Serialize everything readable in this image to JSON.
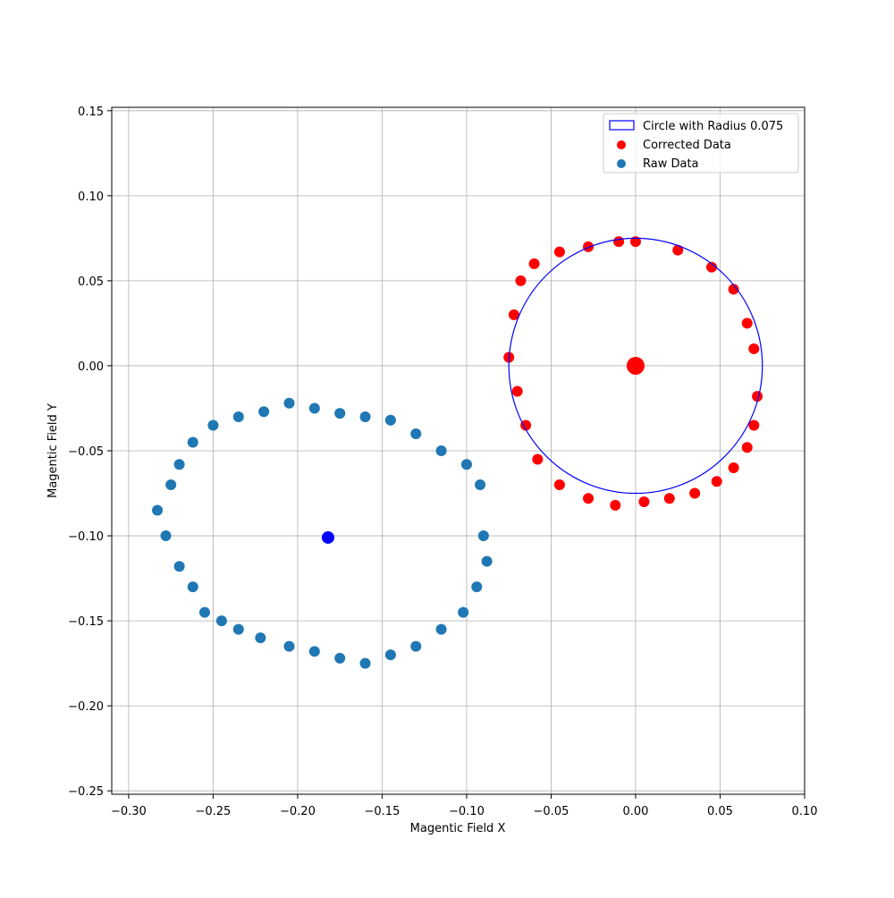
{
  "chart_data": {
    "type": "scatter",
    "title": "",
    "xlabel": "Magentic Field X",
    "ylabel": "Magentic Field Y",
    "xlim": [
      -0.31,
      0.1
    ],
    "ylim": [
      -0.252,
      0.152
    ],
    "xticks": [
      -0.3,
      -0.25,
      -0.2,
      -0.15,
      -0.1,
      -0.05,
      0.0,
      0.05,
      0.1
    ],
    "xtick_labels": [
      "−0.30",
      "−0.25",
      "−0.20",
      "−0.15",
      "−0.10",
      "−0.05",
      "0.00",
      "0.05",
      "0.10"
    ],
    "yticks": [
      -0.25,
      -0.2,
      -0.15,
      -0.1,
      -0.05,
      0.0,
      0.05,
      0.1,
      0.15
    ],
    "ytick_labels": [
      "−0.25",
      "−0.20",
      "−0.15",
      "−0.10",
      "−0.05",
      "0.00",
      "0.05",
      "0.10",
      "0.15"
    ],
    "grid": true,
    "legend_position": "top-right",
    "legend": [
      {
        "label": "Circle with Radius 0.075",
        "kind": "circle-outline",
        "color": "#0000ff"
      },
      {
        "label": "Corrected Data",
        "kind": "marker",
        "color": "#ff0000"
      },
      {
        "label": "Raw Data",
        "kind": "marker",
        "color": "#1f77b4"
      }
    ],
    "series": [
      {
        "name": "Raw Data",
        "color": "#1f77b4",
        "center_estimate": [
          -0.182,
          -0.101
        ],
        "x": [
          -0.09,
          -0.092,
          -0.1,
          -0.115,
          -0.13,
          -0.145,
          -0.16,
          -0.175,
          -0.19,
          -0.205,
          -0.22,
          -0.235,
          -0.25,
          -0.262,
          -0.27,
          -0.275,
          -0.283,
          -0.278,
          -0.27,
          -0.262,
          -0.255,
          -0.245,
          -0.235,
          -0.222,
          -0.205,
          -0.19,
          -0.175,
          -0.16,
          -0.145,
          -0.13,
          -0.115,
          -0.102,
          -0.094,
          -0.088
        ],
        "y": [
          -0.1,
          -0.07,
          -0.058,
          -0.05,
          -0.04,
          -0.032,
          -0.03,
          -0.028,
          -0.025,
          -0.022,
          -0.027,
          -0.03,
          -0.035,
          -0.045,
          -0.058,
          -0.07,
          -0.085,
          -0.1,
          -0.118,
          -0.13,
          -0.145,
          -0.15,
          -0.155,
          -0.16,
          -0.165,
          -0.168,
          -0.172,
          -0.175,
          -0.17,
          -0.165,
          -0.155,
          -0.145,
          -0.13,
          -0.115
        ]
      },
      {
        "name": "Corrected Data",
        "color": "#ff0000",
        "center_estimate": [
          0.0,
          0.0
        ],
        "x": [
          0.0,
          0.025,
          0.045,
          0.058,
          0.066,
          0.07,
          0.072,
          0.07,
          0.066,
          0.058,
          0.048,
          0.035,
          0.02,
          0.005,
          -0.012,
          -0.028,
          -0.045,
          -0.058,
          -0.065,
          -0.07,
          -0.075,
          -0.072,
          -0.068,
          -0.06,
          -0.045,
          -0.028,
          -0.01
        ],
        "y": [
          0.073,
          0.068,
          0.058,
          0.045,
          0.025,
          0.01,
          -0.018,
          -0.035,
          -0.048,
          -0.06,
          -0.068,
          -0.075,
          -0.078,
          -0.08,
          -0.082,
          -0.078,
          -0.07,
          -0.055,
          -0.035,
          -0.015,
          0.005,
          0.03,
          0.05,
          0.06,
          0.067,
          0.07,
          0.073
        ]
      }
    ],
    "reference_circle": {
      "center": [
        0.0,
        0.0
      ],
      "radius": 0.075,
      "color": "#0000ff"
    },
    "center_markers": [
      {
        "x": -0.182,
        "y": -0.101,
        "color": "#0000ff"
      },
      {
        "x": 0.0,
        "y": 0.0,
        "color": "#ff0000"
      }
    ]
  }
}
